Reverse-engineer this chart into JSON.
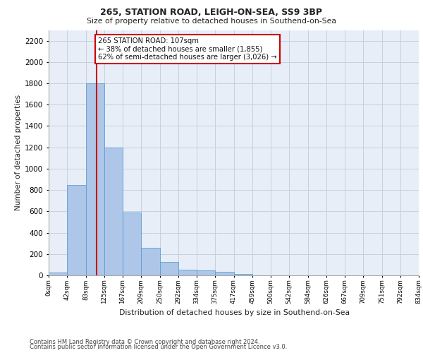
{
  "title1": "265, STATION ROAD, LEIGH-ON-SEA, SS9 3BP",
  "title2": "Size of property relative to detached houses in Southend-on-Sea",
  "xlabel": "Distribution of detached houses by size in Southend-on-Sea",
  "ylabel": "Number of detached properties",
  "footer1": "Contains HM Land Registry data © Crown copyright and database right 2024.",
  "footer2": "Contains public sector information licensed under the Open Government Licence v3.0.",
  "bar_values": [
    25,
    845,
    1800,
    1200,
    590,
    260,
    125,
    50,
    45,
    30,
    15,
    0,
    0,
    0,
    0,
    0,
    0,
    0,
    0,
    0
  ],
  "bin_labels": [
    "0sqm",
    "42sqm",
    "83sqm",
    "125sqm",
    "167sqm",
    "209sqm",
    "250sqm",
    "292sqm",
    "334sqm",
    "375sqm",
    "417sqm",
    "459sqm",
    "500sqm",
    "542sqm",
    "584sqm",
    "626sqm",
    "667sqm",
    "709sqm",
    "751sqm",
    "792sqm",
    "834sqm"
  ],
  "bar_color": "#aec6e8",
  "bar_edge_color": "#5a9fd4",
  "grid_color": "#c8d0dc",
  "bg_color": "#e8eef8",
  "annotation_text": "265 STATION ROAD: 107sqm\n← 38% of detached houses are smaller (1,855)\n62% of semi-detached houses are larger (3,026) →",
  "annotation_box_color": "#ffffff",
  "annotation_box_edge": "#cc0000",
  "vline_color": "#cc0000",
  "vline_x": 2.58,
  "ylim": [
    0,
    2300
  ],
  "yticks": [
    0,
    200,
    400,
    600,
    800,
    1000,
    1200,
    1400,
    1600,
    1800,
    2000,
    2200
  ]
}
